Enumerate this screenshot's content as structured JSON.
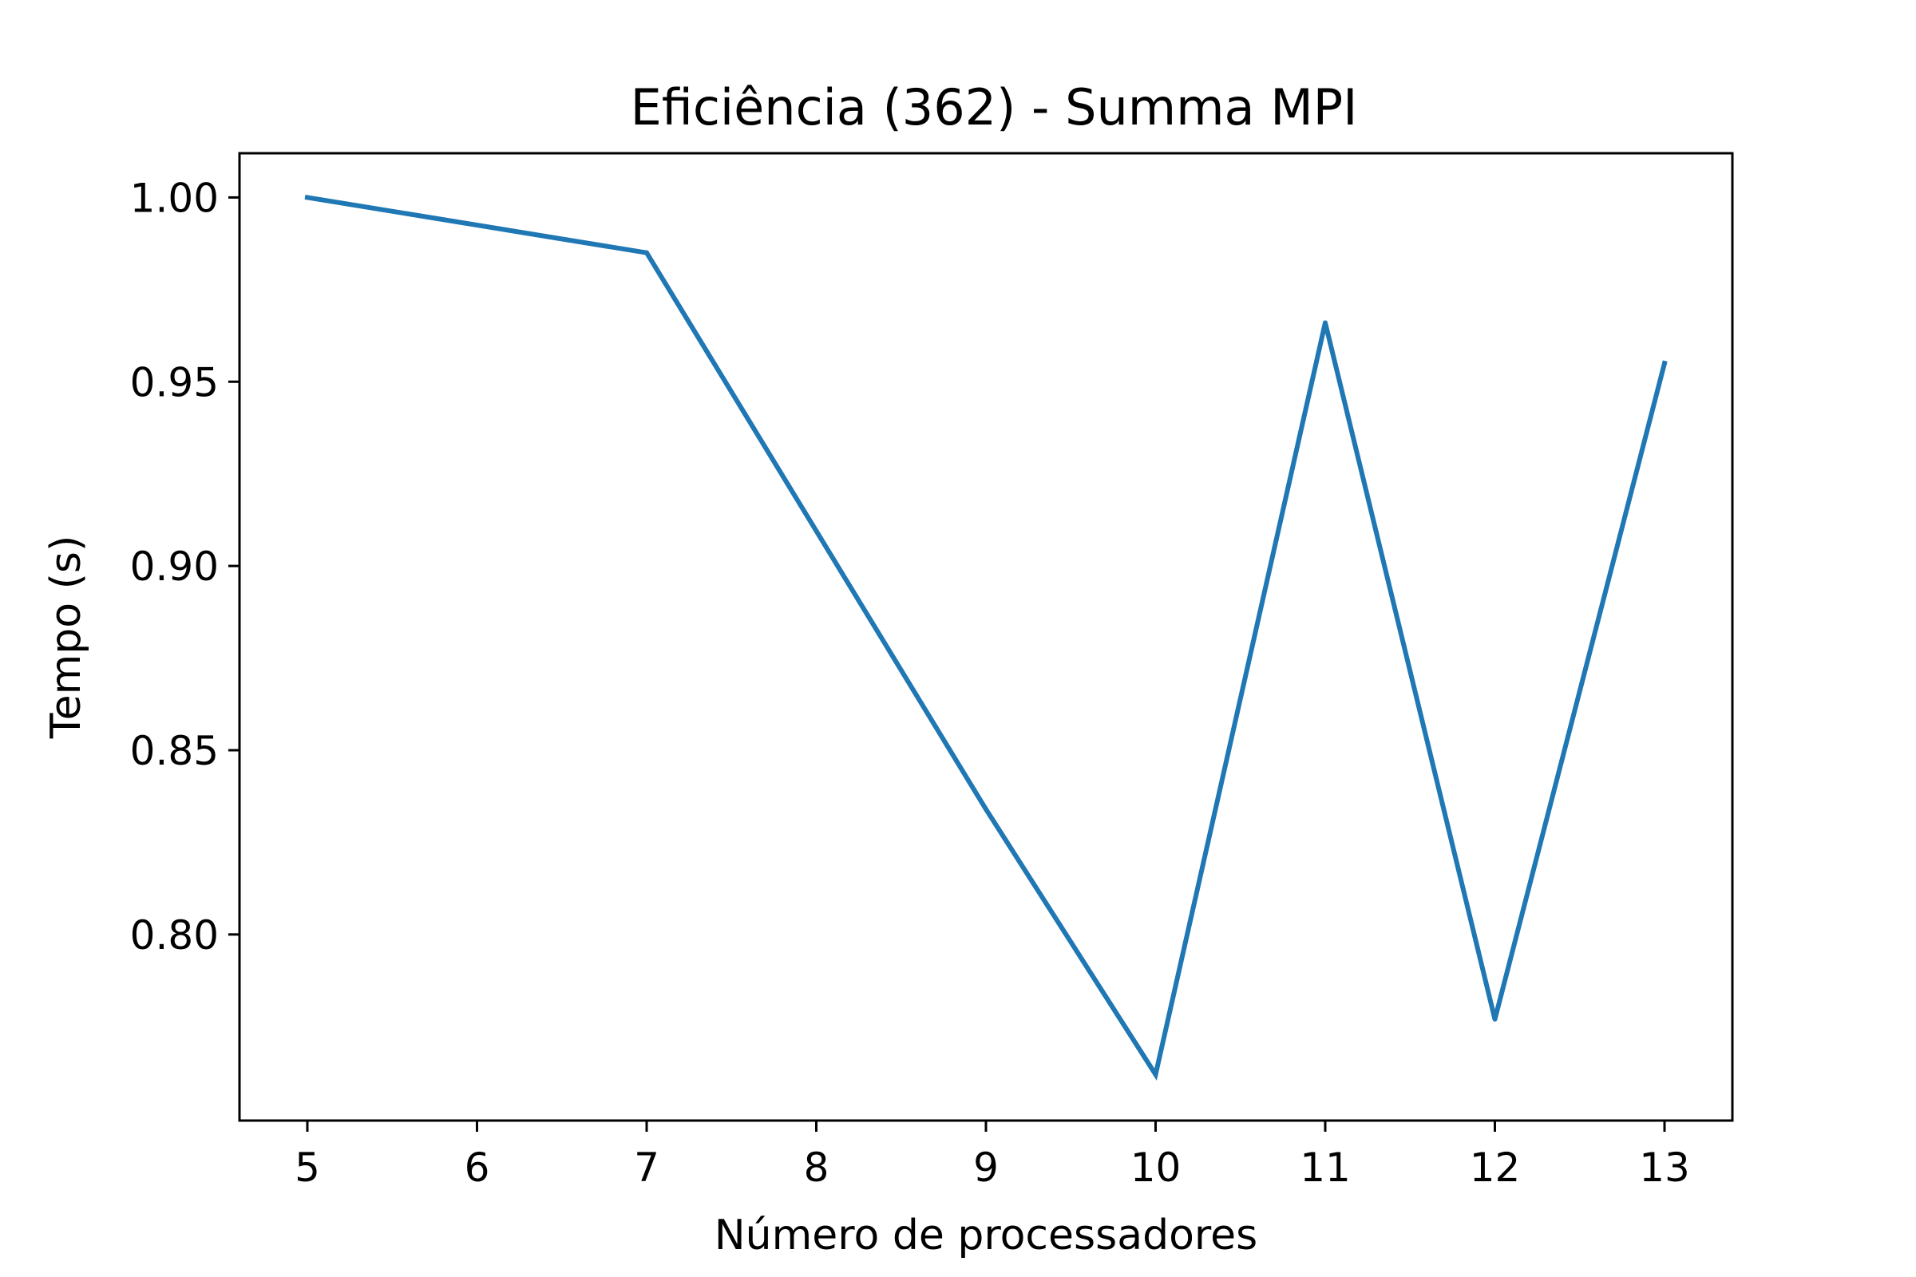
{
  "chart_data": {
    "type": "line",
    "title": "Eficiência (362) - Summa MPI",
    "xlabel": "Número de processadores",
    "ylabel": "Tempo (s)",
    "xlim": [
      4.6,
      13.4
    ],
    "ylim": [
      0.7495,
      1.012
    ],
    "xticks": [
      5,
      6,
      7,
      8,
      9,
      10,
      11,
      12,
      13
    ],
    "xtick_labels": [
      "5",
      "6",
      "7",
      "8",
      "9",
      "10",
      "11",
      "12",
      "13"
    ],
    "yticks": [
      0.8,
      0.85,
      0.9,
      0.95,
      1.0
    ],
    "ytick_labels": [
      "0.80",
      "0.85",
      "0.90",
      "0.95",
      "1.00"
    ],
    "grid": false,
    "series": [
      {
        "name": "Eficiência",
        "color": "#1f77b4",
        "x": [
          5,
          7,
          9,
          10,
          11,
          12,
          13
        ],
        "y": [
          1.0,
          0.985,
          0.834,
          0.762,
          0.966,
          0.777,
          0.955
        ]
      }
    ]
  }
}
